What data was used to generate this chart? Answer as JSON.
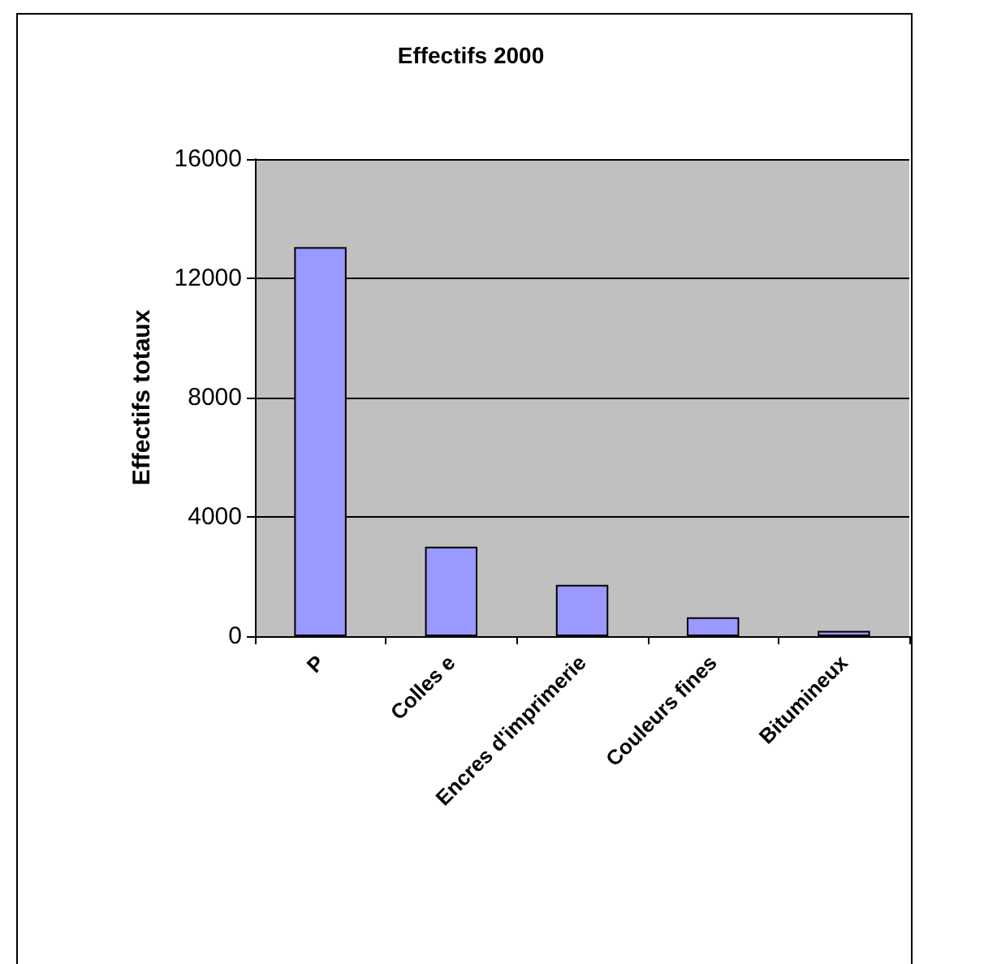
{
  "chart_data": {
    "type": "bar",
    "title": "Effectifs 2000",
    "ylabel": "Effectifs totaux",
    "categories": [
      "P",
      "Colles e",
      "Encres d'imprimerie",
      "Couleurs fines",
      "Bitumineux"
    ],
    "values": [
      13050,
      3000,
      1720,
      630,
      180
    ],
    "color": "#9999ff",
    "ylim": [
      0,
      16000
    ],
    "yticks": [
      0,
      4000,
      8000,
      12000,
      16000
    ],
    "grid": "y"
  }
}
